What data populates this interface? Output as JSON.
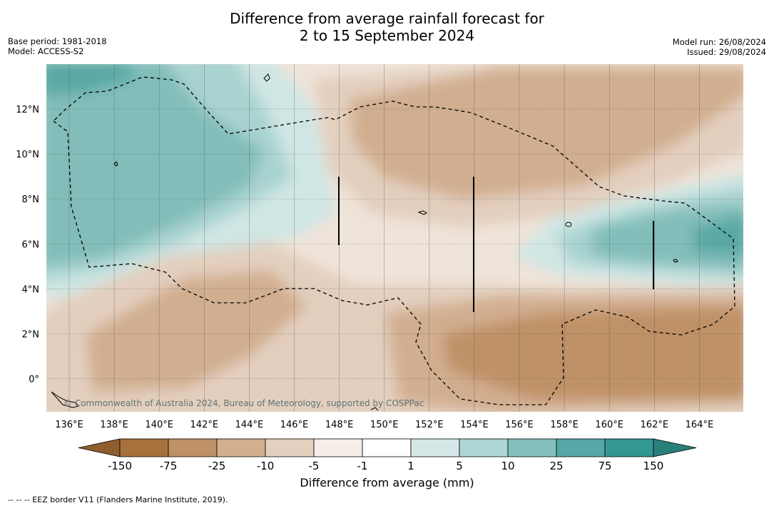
{
  "header": {
    "title_line1": "Difference from average rainfall forecast for",
    "title_line2": "2 to 15 September 2024",
    "base_period": "Base period: 1981-2018",
    "model": "Model: ACCESS-S2",
    "model_run": "Model run: 26/08/2024",
    "issued": "Issued: 29/08/2024"
  },
  "map": {
    "lon_ticks": [
      "136°E",
      "138°E",
      "140°E",
      "142°E",
      "144°E",
      "146°E",
      "148°E",
      "150°E",
      "152°E",
      "154°E",
      "156°E",
      "158°E",
      "160°E",
      "162°E",
      "164°E"
    ],
    "lat_ticks": [
      "12°N",
      "10°N",
      "8°N",
      "6°N",
      "4°N",
      "2°N",
      "0°"
    ],
    "lon_range": [
      135,
      166
    ],
    "lat_range": [
      -1.5,
      14
    ],
    "copyright": "© Commonwealth of Australia 2024, Bureau of Meteorology, supported by COSPPac"
  },
  "colorbar": {
    "labels": [
      "-150",
      "-75",
      "-25",
      "-10",
      "-5",
      "-1",
      "1",
      "5",
      "10",
      "25",
      "75",
      "150"
    ],
    "colors": [
      "#a7713d",
      "#bf9166",
      "#d2b08f",
      "#e4d0bf",
      "#f5ede8",
      "#ffffff",
      "#d4e8e7",
      "#aed6d4",
      "#84bfbd",
      "#56a8a6",
      "#339892"
    ],
    "low_color": "#8f5e2c",
    "high_color": "#2a7f7b",
    "label": "Difference from average (mm)"
  },
  "legend": {
    "eez": "--  --  -- EEZ border V11 (Flanders Marine Institute, 2019)."
  }
}
